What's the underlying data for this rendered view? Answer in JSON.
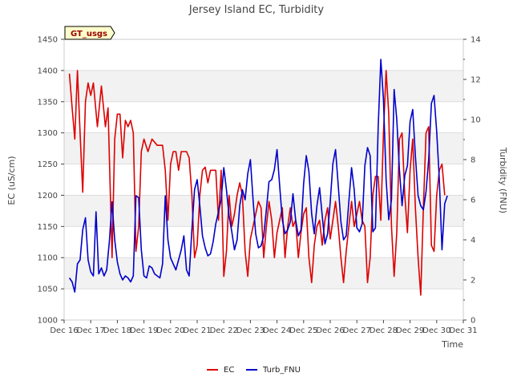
{
  "chart_data": {
    "type": "line",
    "title": "Jersey Island EC, Turbidity",
    "xlabel": "Time",
    "ylabel_left": "EC (uS/cm)",
    "ylabel_right": "Turbidity (FNU)",
    "badge": "GT_usgs",
    "legend_position": "bottom-center",
    "grid": "alternating horizontal bands",
    "x_range": [
      16,
      31
    ],
    "x_ticks": [
      {
        "x": 16,
        "label": "Dec 16"
      },
      {
        "x": 17,
        "label": "Dec 17"
      },
      {
        "x": 18,
        "label": "Dec 18"
      },
      {
        "x": 19,
        "label": "Dec 19"
      },
      {
        "x": 20,
        "label": "Dec 20"
      },
      {
        "x": 21,
        "label": "Dec 21"
      },
      {
        "x": 22,
        "label": "Dec 22"
      },
      {
        "x": 23,
        "label": "Dec 23"
      },
      {
        "x": 24,
        "label": "Dec 24"
      },
      {
        "x": 25,
        "label": "Dec 25"
      },
      {
        "x": 26,
        "label": "Dec 26"
      },
      {
        "x": 27,
        "label": "Dec 27"
      },
      {
        "x": 28,
        "label": "Dec 28"
      },
      {
        "x": 29,
        "label": "Dec 29"
      },
      {
        "x": 30,
        "label": "Dec 30"
      },
      {
        "x": 31,
        "label": "Dec 31"
      }
    ],
    "ylim_left": [
      1000,
      1450
    ],
    "yticks_left": [
      "1000",
      "1050",
      "1100",
      "1150",
      "1200",
      "1250",
      "1300",
      "1350",
      "1400",
      "1450"
    ],
    "ylim_right": [
      0,
      14
    ],
    "yticks_right": [
      "0",
      "2",
      "4",
      "6",
      "8",
      "10",
      "12",
      "14"
    ],
    "series": [
      {
        "name": "EC",
        "axis": "left",
        "color": "#dd0000",
        "points": [
          [
            16.2,
            1395
          ],
          [
            16.3,
            1340
          ],
          [
            16.4,
            1290
          ],
          [
            16.5,
            1400
          ],
          [
            16.6,
            1300
          ],
          [
            16.7,
            1205
          ],
          [
            16.8,
            1350
          ],
          [
            16.9,
            1380
          ],
          [
            17.0,
            1360
          ],
          [
            17.1,
            1380
          ],
          [
            17.25,
            1310
          ],
          [
            17.4,
            1375
          ],
          [
            17.55,
            1310
          ],
          [
            17.65,
            1340
          ],
          [
            17.8,
            1100
          ],
          [
            17.9,
            1290
          ],
          [
            18.0,
            1330
          ],
          [
            18.1,
            1330
          ],
          [
            18.2,
            1260
          ],
          [
            18.3,
            1320
          ],
          [
            18.4,
            1310
          ],
          [
            18.5,
            1320
          ],
          [
            18.6,
            1300
          ],
          [
            18.7,
            1110
          ],
          [
            18.8,
            1150
          ],
          [
            18.9,
            1270
          ],
          [
            19.0,
            1290
          ],
          [
            19.15,
            1270
          ],
          [
            19.3,
            1290
          ],
          [
            19.5,
            1280
          ],
          [
            19.7,
            1280
          ],
          [
            19.8,
            1240
          ],
          [
            19.9,
            1160
          ],
          [
            20.0,
            1250
          ],
          [
            20.1,
            1270
          ],
          [
            20.2,
            1270
          ],
          [
            20.3,
            1240
          ],
          [
            20.4,
            1270
          ],
          [
            20.5,
            1270
          ],
          [
            20.6,
            1270
          ],
          [
            20.7,
            1260
          ],
          [
            20.8,
            1200
          ],
          [
            20.9,
            1100
          ],
          [
            21.0,
            1120
          ],
          [
            21.1,
            1200
          ],
          [
            21.2,
            1240
          ],
          [
            21.3,
            1245
          ],
          [
            21.4,
            1220
          ],
          [
            21.5,
            1240
          ],
          [
            21.6,
            1240
          ],
          [
            21.7,
            1240
          ],
          [
            21.8,
            1160
          ],
          [
            21.9,
            1240
          ],
          [
            22.0,
            1070
          ],
          [
            22.1,
            1110
          ],
          [
            22.2,
            1200
          ],
          [
            22.3,
            1150
          ],
          [
            22.4,
            1170
          ],
          [
            22.5,
            1200
          ],
          [
            22.6,
            1220
          ],
          [
            22.7,
            1200
          ],
          [
            22.8,
            1110
          ],
          [
            22.9,
            1070
          ],
          [
            23.0,
            1130
          ],
          [
            23.1,
            1150
          ],
          [
            23.2,
            1170
          ],
          [
            23.3,
            1190
          ],
          [
            23.4,
            1180
          ],
          [
            23.5,
            1100
          ],
          [
            23.6,
            1150
          ],
          [
            23.7,
            1190
          ],
          [
            23.8,
            1160
          ],
          [
            23.9,
            1100
          ],
          [
            24.0,
            1140
          ],
          [
            24.1,
            1160
          ],
          [
            24.2,
            1180
          ],
          [
            24.3,
            1100
          ],
          [
            24.4,
            1150
          ],
          [
            24.5,
            1180
          ],
          [
            24.6,
            1150
          ],
          [
            24.7,
            1160
          ],
          [
            24.8,
            1100
          ],
          [
            24.9,
            1140
          ],
          [
            25.0,
            1170
          ],
          [
            25.1,
            1180
          ],
          [
            25.2,
            1100
          ],
          [
            25.3,
            1060
          ],
          [
            25.4,
            1120
          ],
          [
            25.5,
            1150
          ],
          [
            25.6,
            1160
          ],
          [
            25.7,
            1120
          ],
          [
            25.8,
            1160
          ],
          [
            25.9,
            1180
          ],
          [
            26.0,
            1130
          ],
          [
            26.1,
            1160
          ],
          [
            26.2,
            1190
          ],
          [
            26.3,
            1150
          ],
          [
            26.4,
            1100
          ],
          [
            26.5,
            1060
          ],
          [
            26.6,
            1110
          ],
          [
            26.7,
            1150
          ],
          [
            26.8,
            1190
          ],
          [
            26.9,
            1150
          ],
          [
            27.0,
            1170
          ],
          [
            27.1,
            1190
          ],
          [
            27.2,
            1160
          ],
          [
            27.3,
            1150
          ],
          [
            27.4,
            1060
          ],
          [
            27.5,
            1100
          ],
          [
            27.6,
            1200
          ],
          [
            27.7,
            1230
          ],
          [
            27.8,
            1230
          ],
          [
            27.9,
            1160
          ],
          [
            28.0,
            1300
          ],
          [
            28.1,
            1400
          ],
          [
            28.2,
            1330
          ],
          [
            28.3,
            1150
          ],
          [
            28.4,
            1070
          ],
          [
            28.5,
            1140
          ],
          [
            28.6,
            1290
          ],
          [
            28.7,
            1300
          ],
          [
            28.8,
            1200
          ],
          [
            28.9,
            1140
          ],
          [
            29.0,
            1240
          ],
          [
            29.1,
            1290
          ],
          [
            29.2,
            1180
          ],
          [
            29.3,
            1100
          ],
          [
            29.4,
            1040
          ],
          [
            29.5,
            1180
          ],
          [
            29.6,
            1300
          ],
          [
            29.7,
            1310
          ],
          [
            29.8,
            1120
          ],
          [
            29.9,
            1110
          ],
          [
            30.0,
            1200
          ],
          [
            30.1,
            1240
          ],
          [
            30.2,
            1250
          ],
          [
            30.3,
            1200
          ]
        ]
      },
      {
        "name": "Turb_FNU",
        "axis": "right",
        "color": "#0000cc",
        "points": [
          [
            16.2,
            2.1
          ],
          [
            16.3,
            1.9
          ],
          [
            16.4,
            1.4
          ],
          [
            16.5,
            2.8
          ],
          [
            16.6,
            3.0
          ],
          [
            16.7,
            4.5
          ],
          [
            16.8,
            5.1
          ],
          [
            16.9,
            3.0
          ],
          [
            17.0,
            2.4
          ],
          [
            17.1,
            2.2
          ],
          [
            17.2,
            5.4
          ],
          [
            17.3,
            2.3
          ],
          [
            17.4,
            2.6
          ],
          [
            17.5,
            2.2
          ],
          [
            17.6,
            2.5
          ],
          [
            17.7,
            3.9
          ],
          [
            17.8,
            5.9
          ],
          [
            17.9,
            4.0
          ],
          [
            18.0,
            2.9
          ],
          [
            18.1,
            2.3
          ],
          [
            18.2,
            2.0
          ],
          [
            18.3,
            2.2
          ],
          [
            18.4,
            2.1
          ],
          [
            18.5,
            1.9
          ],
          [
            18.6,
            2.2
          ],
          [
            18.7,
            6.2
          ],
          [
            18.8,
            6.1
          ],
          [
            18.9,
            3.5
          ],
          [
            19.0,
            2.2
          ],
          [
            19.1,
            2.1
          ],
          [
            19.2,
            2.7
          ],
          [
            19.3,
            2.6
          ],
          [
            19.4,
            2.3
          ],
          [
            19.5,
            2.2
          ],
          [
            19.6,
            2.1
          ],
          [
            19.7,
            2.8
          ],
          [
            19.8,
            6.2
          ],
          [
            19.9,
            4.0
          ],
          [
            20.0,
            3.1
          ],
          [
            20.1,
            2.8
          ],
          [
            20.2,
            2.5
          ],
          [
            20.3,
            3.0
          ],
          [
            20.4,
            3.5
          ],
          [
            20.5,
            4.2
          ],
          [
            20.6,
            2.5
          ],
          [
            20.7,
            2.2
          ],
          [
            20.8,
            4.5
          ],
          [
            20.9,
            6.5
          ],
          [
            21.0,
            7.0
          ],
          [
            21.1,
            5.7
          ],
          [
            21.2,
            4.2
          ],
          [
            21.3,
            3.6
          ],
          [
            21.4,
            3.2
          ],
          [
            21.5,
            3.3
          ],
          [
            21.6,
            3.9
          ],
          [
            21.7,
            4.8
          ],
          [
            21.8,
            5.4
          ],
          [
            21.9,
            6.0
          ],
          [
            22.0,
            7.6
          ],
          [
            22.1,
            6.5
          ],
          [
            22.2,
            5.2
          ],
          [
            22.3,
            4.4
          ],
          [
            22.4,
            3.5
          ],
          [
            22.5,
            4.0
          ],
          [
            22.6,
            5.7
          ],
          [
            22.7,
            6.5
          ],
          [
            22.8,
            6.0
          ],
          [
            22.9,
            7.3
          ],
          [
            23.0,
            8.0
          ],
          [
            23.1,
            6.0
          ],
          [
            23.2,
            4.3
          ],
          [
            23.3,
            3.6
          ],
          [
            23.4,
            3.7
          ],
          [
            23.5,
            4.2
          ],
          [
            23.6,
            5.5
          ],
          [
            23.7,
            6.9
          ],
          [
            23.8,
            7.0
          ],
          [
            23.9,
            7.5
          ],
          [
            24.0,
            8.5
          ],
          [
            24.1,
            6.7
          ],
          [
            24.2,
            5.0
          ],
          [
            24.3,
            4.3
          ],
          [
            24.4,
            4.5
          ],
          [
            24.5,
            4.9
          ],
          [
            24.6,
            6.3
          ],
          [
            24.7,
            5.0
          ],
          [
            24.8,
            4.2
          ],
          [
            24.9,
            4.5
          ],
          [
            25.0,
            6.8
          ],
          [
            25.1,
            8.2
          ],
          [
            25.2,
            7.4
          ],
          [
            25.3,
            5.3
          ],
          [
            25.4,
            4.3
          ],
          [
            25.5,
            5.7
          ],
          [
            25.6,
            6.6
          ],
          [
            25.7,
            5.2
          ],
          [
            25.8,
            3.8
          ],
          [
            25.9,
            4.3
          ],
          [
            26.0,
            5.9
          ],
          [
            26.1,
            7.8
          ],
          [
            26.2,
            8.5
          ],
          [
            26.3,
            6.7
          ],
          [
            26.4,
            4.9
          ],
          [
            26.5,
            4.0
          ],
          [
            26.6,
            4.2
          ],
          [
            26.7,
            5.9
          ],
          [
            26.8,
            7.6
          ],
          [
            26.9,
            6.5
          ],
          [
            27.0,
            4.6
          ],
          [
            27.1,
            4.4
          ],
          [
            27.2,
            4.8
          ],
          [
            27.3,
            7.7
          ],
          [
            27.4,
            8.6
          ],
          [
            27.5,
            8.2
          ],
          [
            27.6,
            4.4
          ],
          [
            27.7,
            4.6
          ],
          [
            27.8,
            9.6
          ],
          [
            27.9,
            13.0
          ],
          [
            28.0,
            11.0
          ],
          [
            28.1,
            7.0
          ],
          [
            28.2,
            5.0
          ],
          [
            28.3,
            6.0
          ],
          [
            28.4,
            11.5
          ],
          [
            28.5,
            10.0
          ],
          [
            28.6,
            7.5
          ],
          [
            28.7,
            5.7
          ],
          [
            28.8,
            7.2
          ],
          [
            28.9,
            7.7
          ],
          [
            29.0,
            9.9
          ],
          [
            29.1,
            10.5
          ],
          [
            29.2,
            8.2
          ],
          [
            29.3,
            6.2
          ],
          [
            29.4,
            5.7
          ],
          [
            29.5,
            5.5
          ],
          [
            29.6,
            6.4
          ],
          [
            29.7,
            8.0
          ],
          [
            29.8,
            10.8
          ],
          [
            29.9,
            11.2
          ],
          [
            30.0,
            9.4
          ],
          [
            30.1,
            7.0
          ],
          [
            30.2,
            3.5
          ],
          [
            30.3,
            5.8
          ],
          [
            30.4,
            6.2
          ]
        ]
      }
    ]
  }
}
